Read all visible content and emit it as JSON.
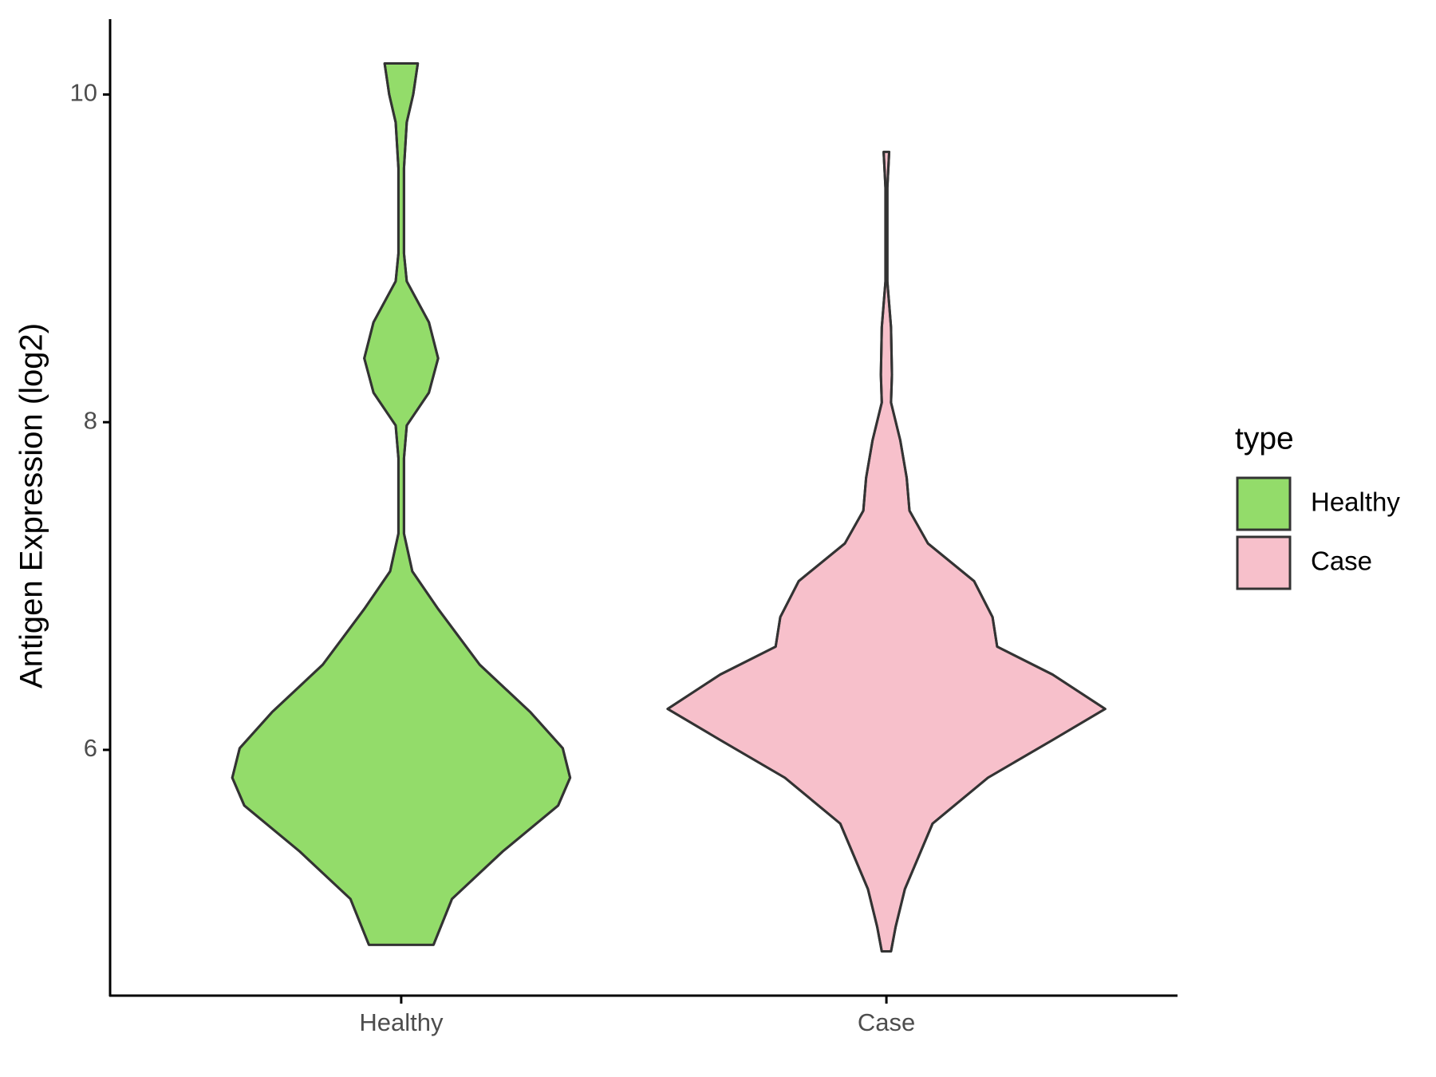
{
  "chart_data": {
    "type": "violin",
    "y_label": "Antigen Expression (log2)",
    "categories": [
      "Healthy",
      "Case"
    ],
    "legend_title": "type",
    "ylim": [
      4.5,
      10.46
    ],
    "yticks": [
      6,
      8,
      10
    ],
    "series": [
      {
        "name": "Healthy",
        "color": "#93dc6a",
        "y": [
          4.81,
          5.09,
          5.38,
          5.66,
          5.83,
          6.01,
          6.23,
          6.52,
          6.86,
          7.09,
          7.32,
          7.78,
          7.98,
          8.18,
          8.39,
          8.61,
          8.86,
          9.03,
          9.55,
          9.83,
          10.0,
          10.19
        ],
        "density": [
          35,
          55,
          110,
          170,
          183,
          175,
          140,
          85,
          40,
          12,
          3,
          3,
          6,
          30,
          40,
          30,
          6,
          3,
          3,
          6,
          13,
          18
        ]
      },
      {
        "name": "Case",
        "color": "#f7c0cb",
        "y": [
          4.77,
          4.92,
          5.15,
          5.55,
          5.83,
          6.06,
          6.25,
          6.46,
          6.63,
          6.81,
          7.03,
          7.26,
          7.46,
          7.66,
          7.89,
          8.12,
          8.29,
          8.58,
          8.86,
          9.43,
          9.65
        ],
        "density": [
          5,
          10,
          20,
          50,
          110,
          180,
          237,
          180,
          120,
          115,
          95,
          45,
          25,
          22,
          15,
          5,
          6,
          5,
          1,
          1,
          3
        ]
      }
    ]
  }
}
